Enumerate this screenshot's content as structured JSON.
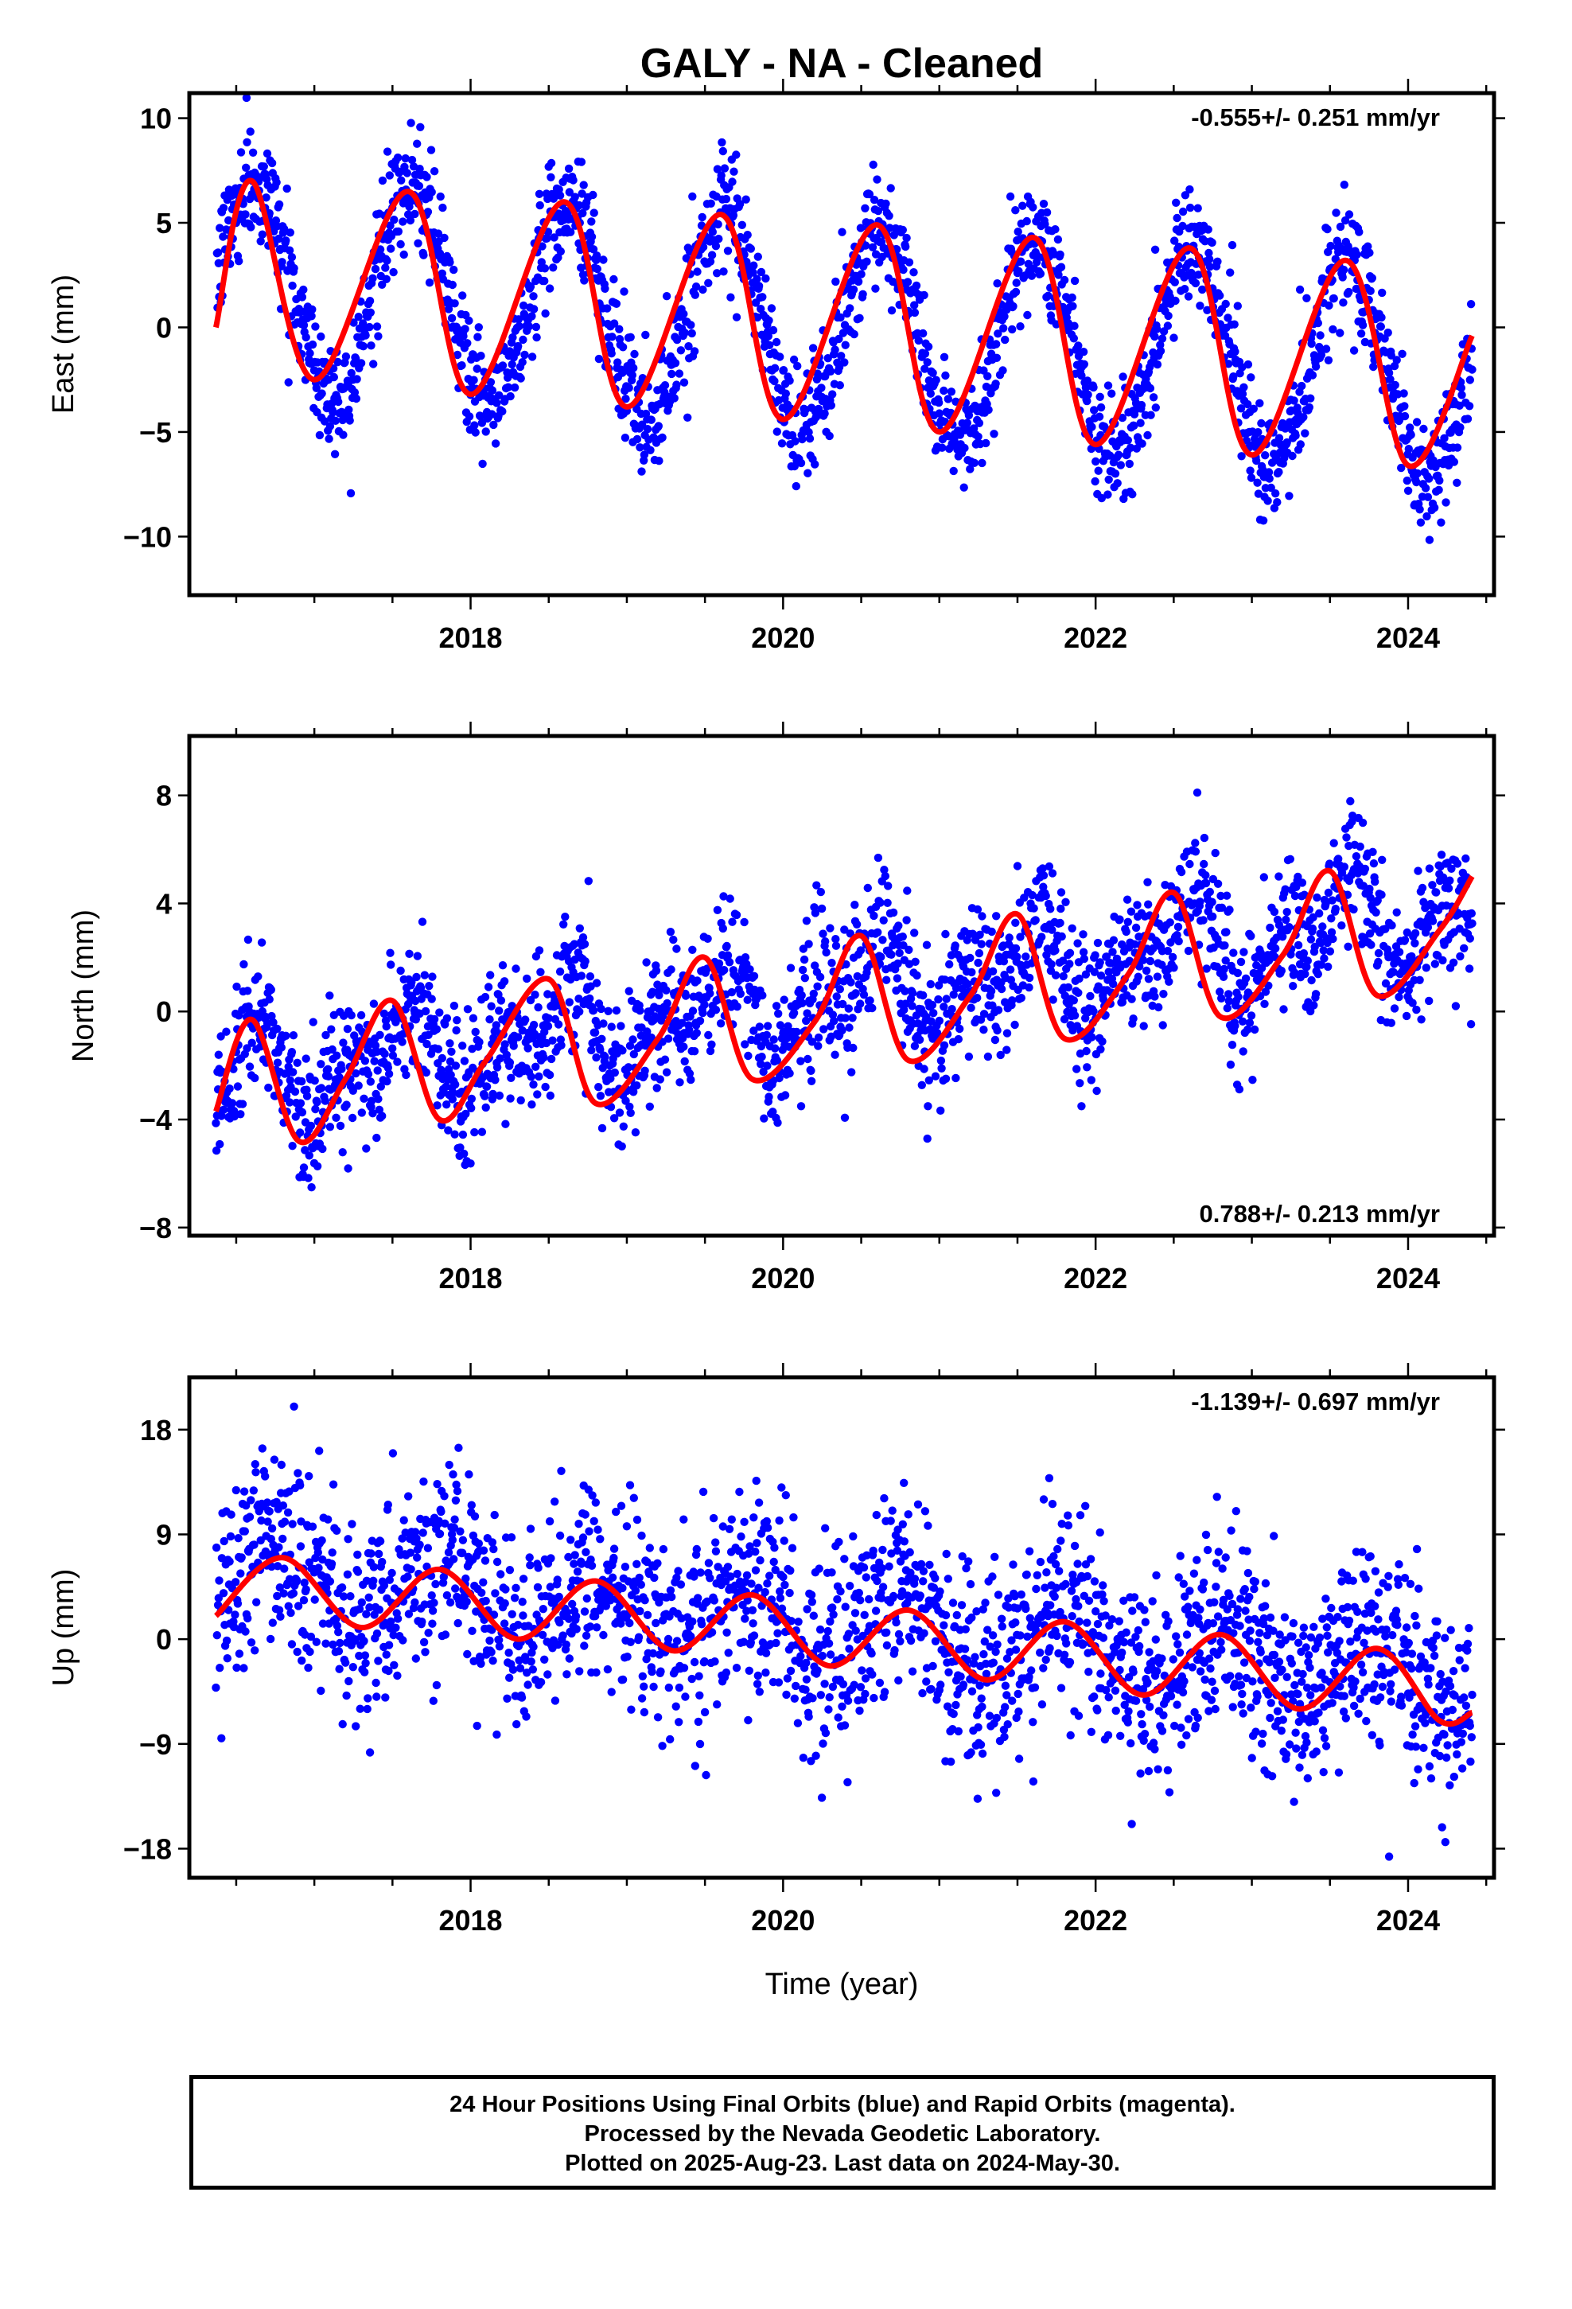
{
  "figure": {
    "title": "GALY  - NA - Cleaned",
    "xlabel": "Time (year)",
    "footer": [
      "24 Hour Positions Using Final Orbits (blue) and Rapid Orbits (magenta).",
      "Processed by the Nevada Geodetic Laboratory.",
      "Plotted on 2025-Aug-23. Last data on 2024-May-30."
    ]
  },
  "chart_data": [
    {
      "type": "scatter",
      "ylabel": "East (mm)",
      "xlim": [
        2016.2,
        2024.55
      ],
      "ylim": [
        -12.8,
        11.2
      ],
      "yticks": [
        10,
        5,
        0,
        -5,
        -10
      ],
      "ytick_labels": [
        "10",
        "5",
        "0",
        "−5",
        "−10"
      ],
      "xticks": [
        2018,
        2020,
        2022,
        2024
      ],
      "xtick_labels": [
        "2018",
        "2020",
        "2022",
        "2024"
      ],
      "rate_label": "-0.555+/- 0.251 mm/yr",
      "rate_position": "top-right",
      "x_range": [
        2016.37,
        2024.41
      ],
      "points_color": "#0000ff",
      "fit_color": "#ff0000",
      "series": [
        {
          "name": "Final Orbits (blue)",
          "kind": "points"
        },
        {
          "name": "model fit",
          "kind": "line"
        }
      ],
      "model": {
        "t0": 2016.37,
        "offset": 2.2,
        "rate": -0.555,
        "annual_amp": 5.0,
        "annual_phase": 0.37,
        "semi_amp": 0.0,
        "semi_phase": 0.0,
        "noise": 1.4
      },
      "fit_points": [
        [
          2016.37,
          0.0
        ],
        [
          2016.6,
          7.0
        ],
        [
          2017.0,
          -2.5
        ],
        [
          2017.6,
          6.5
        ],
        [
          2018.0,
          -3.2
        ],
        [
          2018.6,
          6.0
        ],
        [
          2019.0,
          -3.8
        ],
        [
          2019.6,
          5.4
        ],
        [
          2020.0,
          -4.4
        ],
        [
          2020.6,
          4.9
        ],
        [
          2021.0,
          -5.0
        ],
        [
          2021.6,
          4.3
        ],
        [
          2022.0,
          -5.6
        ],
        [
          2022.6,
          3.8
        ],
        [
          2023.0,
          -6.1
        ],
        [
          2023.6,
          3.2
        ],
        [
          2024.0,
          -6.6
        ],
        [
          2024.41,
          -0.4
        ]
      ]
    },
    {
      "type": "scatter",
      "ylabel": "North (mm)",
      "xlim": [
        2016.2,
        2024.55
      ],
      "ylim": [
        -8.3,
        10.2
      ],
      "yticks": [
        8,
        4,
        0,
        -4,
        -8
      ],
      "ytick_labels": [
        "8",
        "4",
        "0",
        "−4",
        "−8"
      ],
      "xticks": [
        2018,
        2020,
        2022,
        2024
      ],
      "xtick_labels": [
        "2018",
        "2020",
        "2022",
        "2024"
      ],
      "rate_label": "0.788+/- 0.213 mm/yr",
      "rate_position": "bottom-right",
      "x_range": [
        2016.37,
        2024.41
      ],
      "points_color": "#0000ff",
      "fit_color": "#ff0000",
      "series": [
        {
          "name": "Final Orbits (blue)",
          "kind": "points"
        },
        {
          "name": "model fit",
          "kind": "line"
        }
      ],
      "model": {
        "t0": 2016.37,
        "offset": -2.6,
        "rate": 0.788,
        "annual_amp": 1.3,
        "annual_phase": 0.3,
        "semi_amp": 1.1,
        "semi_phase": 0.05,
        "noise": 1.3
      },
      "fit_points": [
        [
          2016.37,
          -3.7
        ],
        [
          2016.6,
          -0.3
        ],
        [
          2016.9,
          -4.8
        ],
        [
          2017.2,
          -2.5
        ],
        [
          2017.5,
          0.4
        ],
        [
          2017.8,
          -4.0
        ],
        [
          2018.1,
          -1.8
        ],
        [
          2018.5,
          1.2
        ],
        [
          2018.8,
          -3.4
        ],
        [
          2019.2,
          -1.0
        ],
        [
          2019.5,
          2.0
        ],
        [
          2019.8,
          -2.5
        ],
        [
          2020.2,
          -0.4
        ],
        [
          2020.5,
          2.8
        ],
        [
          2020.8,
          -1.8
        ],
        [
          2021.2,
          0.6
        ],
        [
          2021.5,
          3.6
        ],
        [
          2021.8,
          -1.0
        ],
        [
          2022.2,
          1.3
        ],
        [
          2022.5,
          4.4
        ],
        [
          2022.8,
          -0.2
        ],
        [
          2023.2,
          2.1
        ],
        [
          2023.5,
          5.2
        ],
        [
          2023.8,
          0.6
        ],
        [
          2024.2,
          3.0
        ],
        [
          2024.41,
          5.0
        ]
      ]
    },
    {
      "type": "scatter",
      "ylabel": "Up (mm)",
      "xlim": [
        2016.2,
        2024.55
      ],
      "ylim": [
        -20.5,
        22.5
      ],
      "yticks": [
        18,
        9,
        0,
        -9,
        -18
      ],
      "ytick_labels": [
        "18",
        "9",
        "0",
        "−9",
        "−18"
      ],
      "xticks": [
        2018,
        2020,
        2022,
        2024
      ],
      "xtick_labels": [
        "2018",
        "2020",
        "2022",
        "2024"
      ],
      "rate_label": "-1.139+/- 0.697 mm/yr",
      "rate_position": "top-right",
      "x_range": [
        2016.37,
        2024.41
      ],
      "points_color": "#0000ff",
      "fit_color": "#ff0000",
      "series": [
        {
          "name": "Final Orbits (blue)",
          "kind": "points"
        },
        {
          "name": "model fit",
          "kind": "line"
        }
      ],
      "model": {
        "t0": 2016.37,
        "offset": 5.5,
        "rate": -1.139,
        "annual_amp": 3.0,
        "annual_phase": 0.55,
        "semi_amp": 0.0,
        "semi_phase": 0.0,
        "noise": 4.3
      },
      "fit_points": [
        [
          2016.37,
          2.0
        ],
        [
          2016.8,
          7.0
        ],
        [
          2017.3,
          1.0
        ],
        [
          2017.8,
          6.0
        ],
        [
          2018.3,
          0.0
        ],
        [
          2018.8,
          5.0
        ],
        [
          2019.3,
          -1.0
        ],
        [
          2019.8,
          3.8
        ],
        [
          2020.3,
          -2.3
        ],
        [
          2020.8,
          2.5
        ],
        [
          2021.3,
          -3.5
        ],
        [
          2021.8,
          1.5
        ],
        [
          2022.3,
          -4.8
        ],
        [
          2022.8,
          0.4
        ],
        [
          2023.3,
          -6.0
        ],
        [
          2023.8,
          -0.8
        ],
        [
          2024.2,
          -7.0
        ],
        [
          2024.41,
          -6.3
        ]
      ]
    }
  ]
}
